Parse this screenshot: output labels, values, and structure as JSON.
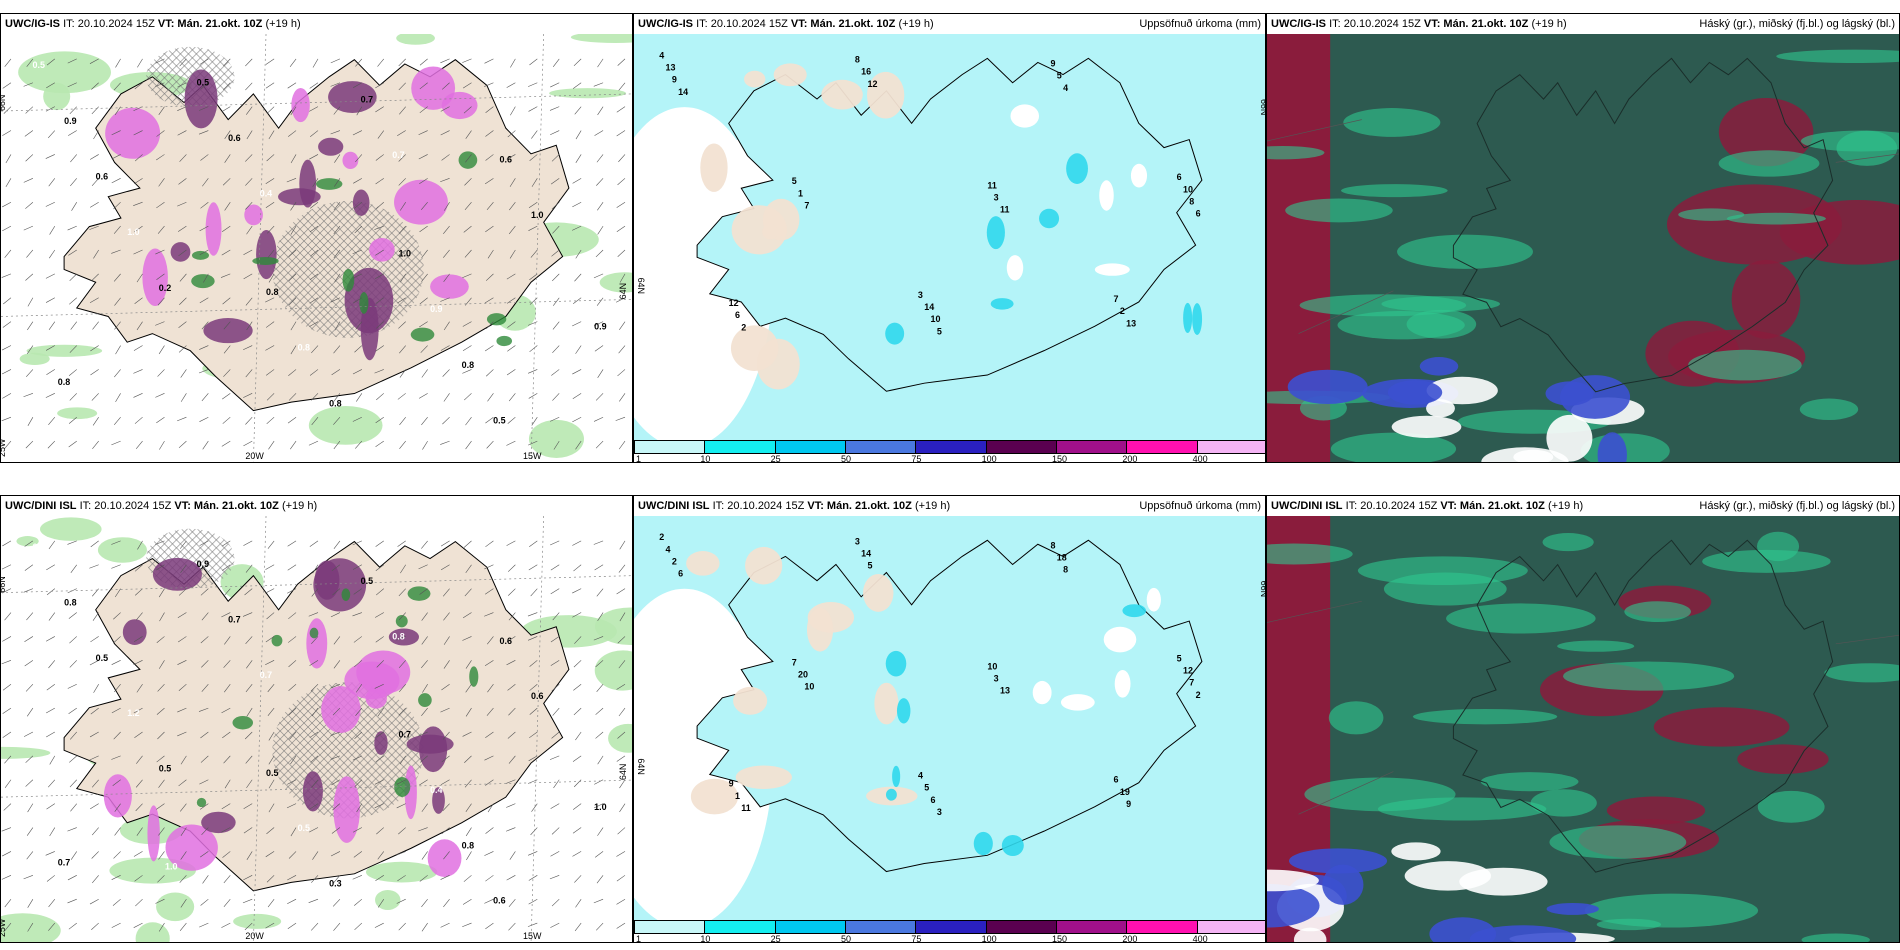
{
  "rows": [
    {
      "model": "UWC/IG-IS",
      "panels": [
        {
          "type": "precip-type",
          "header_left": "UWC/IG-IS",
          "it": "IT: 20.10.2024 15Z",
          "vt": "VT: Mán. 21.okt. 10Z",
          "lead": "(+19 h)",
          "header_right": "",
          "lat_labels": [
            "66N",
            "64N"
          ],
          "lon_labels": [
            "20W",
            "15W"
          ],
          "west_label": "25W",
          "values": [
            "0.5",
            "0.8",
            "0.6",
            "0.5",
            "1.0",
            "0.9",
            "0.8",
            "1.0",
            "0.5",
            "0.9",
            "0.6",
            "0.8",
            "0.5",
            "0.6",
            "0.8",
            "1.0",
            "0.7",
            "0.9",
            "0.4",
            "0.5",
            "0.2",
            "0.7",
            "0.8"
          ]
        },
        {
          "type": "accum-precip",
          "header_left": "UWC/IG-IS",
          "it": "IT: 20.10.2024 15Z",
          "vt": "VT: Mán. 21.okt. 10Z",
          "lead": "(+19 h)",
          "header_right": "Uppsöfnuð úrkoma (mm)",
          "lat_labels": [
            "66N",
            "64N"
          ],
          "values": [
            "4",
            "3",
            "6",
            "8",
            "7",
            "5",
            "9",
            "12",
            "11",
            "13",
            "14",
            "10",
            "16",
            "2",
            "1",
            "5",
            "6",
            "3",
            "9",
            "10",
            "8",
            "12",
            "13",
            "7",
            "4",
            "2",
            "11",
            "14",
            "5",
            "6"
          ]
        },
        {
          "type": "cloud",
          "header_left": "UWC/IG-IS",
          "it": "IT: 20.10.2024 15Z",
          "vt": "VT: Mán. 21.okt. 10Z",
          "lead": "(+19 h)",
          "header_right": "Háský (gr.), miðský (fj.bl.) og lágský (bl.)"
        }
      ]
    },
    {
      "model": "UWC/DINI ISL",
      "panels": [
        {
          "type": "precip-type",
          "header_left": "UWC/DINI ISL",
          "it": "IT: 20.10.2024 15Z",
          "vt": "VT: Mán. 21.okt. 10Z",
          "lead": "(+19 h)",
          "header_right": "",
          "lat_labels": [
            "66N",
            "64N"
          ],
          "lon_labels": [
            "20W",
            "15W"
          ],
          "west_label": "25W",
          "values": [
            "0.8",
            "0.5",
            "0.6",
            "1.0",
            "0.7",
            "0.8",
            "0.5",
            "0.6",
            "0.9",
            "0.4",
            "0.5",
            "0.3",
            "0.6",
            "0.7",
            "0.8",
            "1.2",
            "0.5",
            "1.0",
            "0.7",
            "0.6",
            "0.5",
            "0.8",
            "0.7"
          ]
        },
        {
          "type": "accum-precip",
          "header_left": "UWC/DINI ISL",
          "it": "IT: 20.10.2024 15Z",
          "vt": "VT: Mán. 21.okt. 10Z",
          "lead": "(+19 h)",
          "header_right": "Uppsöfnuð úrkoma (mm)",
          "lat_labels": [
            "66N",
            "64N"
          ],
          "values": [
            "2",
            "4",
            "5",
            "3",
            "6",
            "7",
            "8",
            "9",
            "10",
            "4",
            "5",
            "12",
            "14",
            "19",
            "20",
            "18",
            "1",
            "3",
            "2",
            "6",
            "7",
            "5",
            "9",
            "10",
            "8",
            "11",
            "13",
            "6",
            "3",
            "2"
          ]
        },
        {
          "type": "cloud",
          "header_left": "UWC/DINI ISL",
          "it": "IT: 20.10.2024 15Z",
          "vt": "VT: Mán. 21.okt. 10Z",
          "lead": "(+19 h)",
          "header_right": "Háský (gr.), miðský (fj.bl.) og lágský (bl.)"
        }
      ]
    }
  ],
  "legend": {
    "labels": [
      "1",
      "10",
      "25",
      "50",
      "75",
      "100",
      "150",
      "200",
      "400"
    ],
    "colors": [
      "#c8f7f8",
      "#14eef0",
      "#00c8f0",
      "#4a78e0",
      "#2a20c0",
      "#5a0050",
      "#a0108a",
      "#ff10b0",
      "#f4b4f4"
    ]
  }
}
